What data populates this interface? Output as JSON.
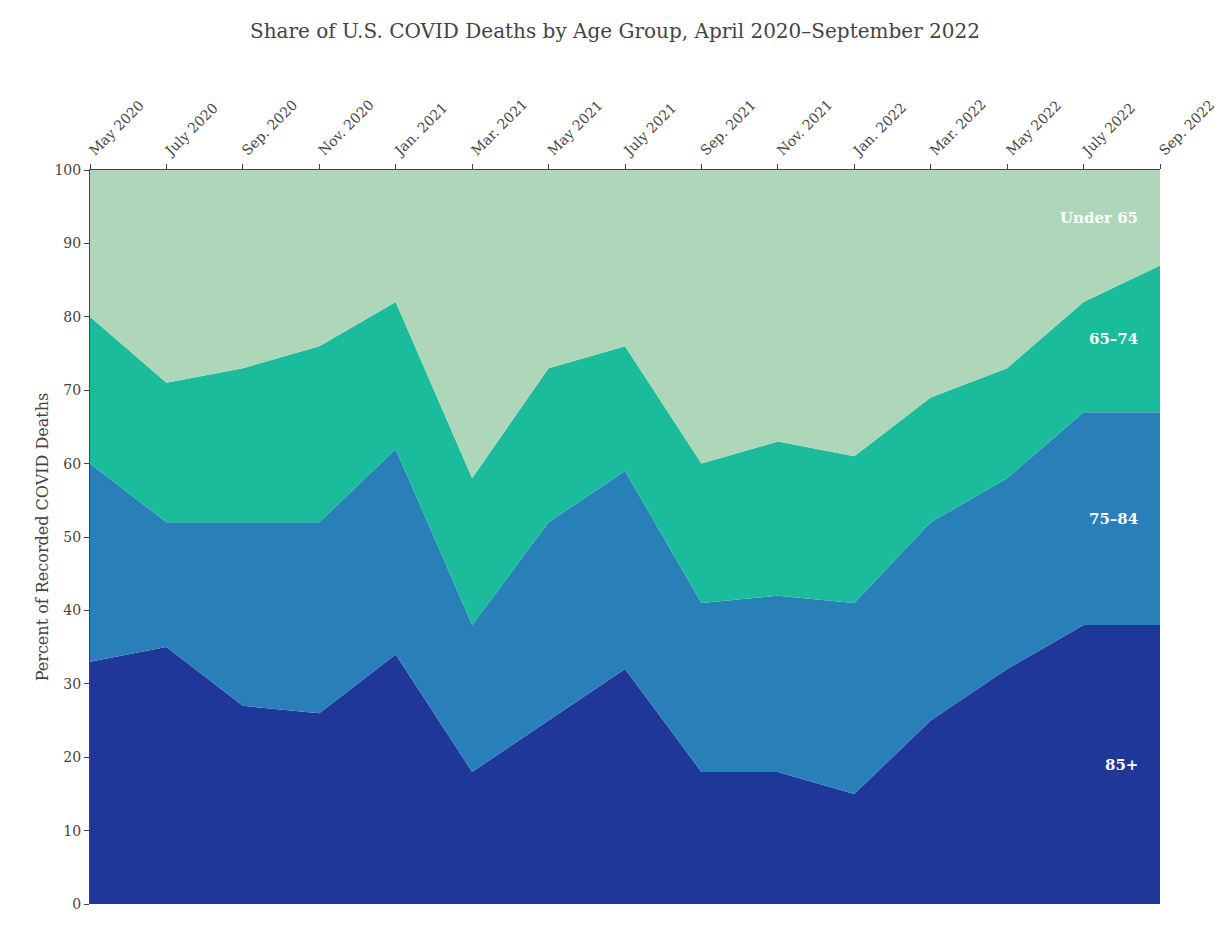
{
  "chart_data": {
    "type": "area",
    "stacked": true,
    "title": "Share of U.S. COVID Deaths by Age Group, April 2020–September 2022",
    "ylabel": "Percent of Recorded COVID Deaths",
    "categories": [
      "May 2020",
      "July 2020",
      "Sep. 2020",
      "Nov. 2020",
      "Jan. 2021",
      "Mar. 2021",
      "May 2021",
      "July 2021",
      "Sep. 2021",
      "Nov. 2021",
      "Jan. 2022",
      "Mar. 2022",
      "May 2022",
      "July 2022",
      "Sep. 2022"
    ],
    "series": [
      {
        "name": "85+",
        "color": "#1e3799",
        "values": [
          33,
          35,
          27,
          26,
          34,
          18,
          25,
          32,
          18,
          18,
          15,
          25,
          32,
          38,
          38
        ]
      },
      {
        "name": "75–84",
        "color": "#2980b9",
        "values": [
          27,
          17,
          25,
          26,
          28,
          20,
          27,
          27,
          23,
          24,
          26,
          27,
          26,
          29,
          29
        ]
      },
      {
        "name": "65–74",
        "color": "#1abc9c",
        "values": [
          20,
          19,
          21,
          24,
          20,
          20,
          21,
          17,
          19,
          21,
          20,
          17,
          15,
          15,
          20
        ]
      },
      {
        "name": "Under 65",
        "color": "#aed6b8",
        "values": [
          20,
          29,
          27,
          24,
          18,
          42,
          27,
          24,
          40,
          37,
          39,
          31,
          27,
          18,
          13
        ]
      }
    ],
    "ylim": [
      0,
      100
    ],
    "yticks": [
      0,
      10,
      20,
      30,
      40,
      50,
      60,
      70,
      80,
      90,
      100
    ],
    "grid": false
  }
}
